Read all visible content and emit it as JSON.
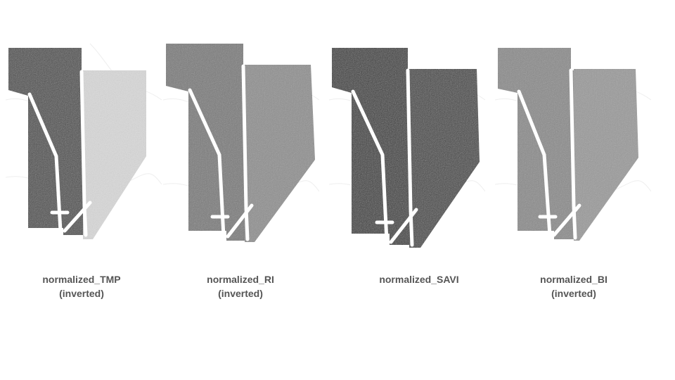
{
  "panels": [
    {
      "id": "tmp",
      "line1": "normalized_TMP",
      "line2": "(inverted)",
      "tone_left": "#4d4d4d",
      "tone_right": "#d9d9d9"
    },
    {
      "id": "ri",
      "line1": "normalized_RI",
      "line2": "(inverted)",
      "tone_left": "#7a7a7a",
      "tone_right": "#8f8f8f"
    },
    {
      "id": "savi",
      "line1": "normalized_SAVI",
      "line2": "",
      "tone_left": "#3a3a3a",
      "tone_right": "#444444"
    },
    {
      "id": "bi",
      "line1": "normalized_BI",
      "line2": "(inverted)",
      "tone_left": "#8a8a8a",
      "tone_right": "#9a9a9a"
    }
  ]
}
